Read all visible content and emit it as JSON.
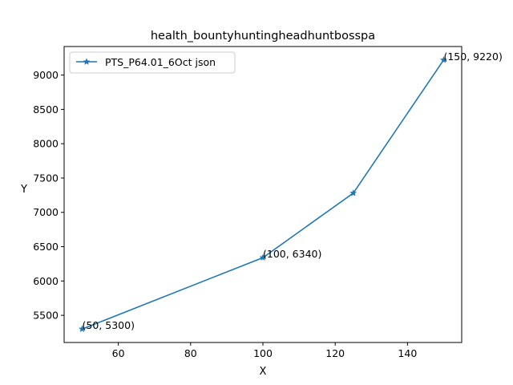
{
  "chart_data": {
    "type": "line",
    "title": "health_bountyhuntingheadhuntbosspa",
    "xlabel": "X",
    "ylabel": "Y",
    "xlim": [
      45,
      155
    ],
    "ylim": [
      5104,
      9416
    ],
    "x_ticks": [
      60,
      80,
      100,
      120,
      140
    ],
    "y_ticks": [
      5500,
      6000,
      6500,
      7000,
      7500,
      8000,
      8500,
      9000
    ],
    "grid": false,
    "legend_position": "upper-left",
    "series": [
      {
        "name": "PTS_P64.01_6Oct json",
        "color": "#1f77b4",
        "marker": "star",
        "x": [
          50,
          100,
          125,
          150
        ],
        "y": [
          5300,
          6340,
          7280,
          9220
        ]
      }
    ],
    "annotations": [
      {
        "x": 50,
        "y": 5300,
        "text": "(50, 5300)"
      },
      {
        "x": 100,
        "y": 6340,
        "text": "(100, 6340)"
      },
      {
        "x": 150,
        "y": 9220,
        "text": "(150, 9220)"
      }
    ]
  }
}
